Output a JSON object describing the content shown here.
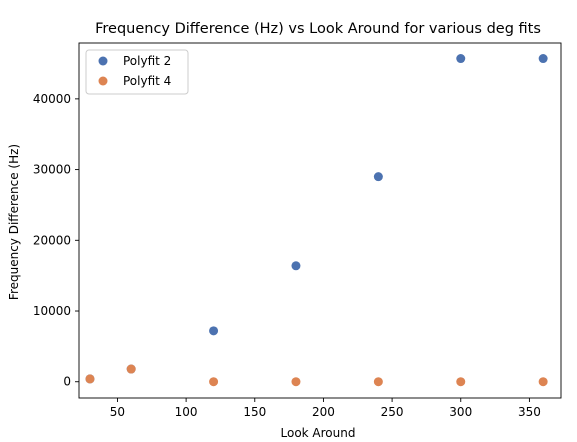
{
  "chart_data": {
    "type": "scatter",
    "title": "Frequency Difference (Hz) vs Look Around for various deg fits",
    "xlabel": "Look Around",
    "ylabel": "Frequency Difference (Hz)",
    "xlim": [
      22,
      373
    ],
    "ylim": [
      -2300,
      47900
    ],
    "xticks": [
      50,
      100,
      150,
      200,
      250,
      300,
      350
    ],
    "yticks": [
      0,
      10000,
      20000,
      30000,
      40000
    ],
    "grid": false,
    "legend_position": "top-left",
    "series": [
      {
        "name": "Polyfit 2",
        "color": "#4c72b0",
        "x": [
          30,
          60,
          120,
          180,
          240,
          300,
          360
        ],
        "y": [
          400,
          1800,
          7200,
          16400,
          29000,
          45700,
          45700
        ]
      },
      {
        "name": "Polyfit 4",
        "color": "#dd8452",
        "x": [
          30,
          60,
          120,
          180,
          240,
          300,
          360
        ],
        "y": [
          400,
          1800,
          0,
          0,
          0,
          0,
          0
        ]
      }
    ]
  }
}
